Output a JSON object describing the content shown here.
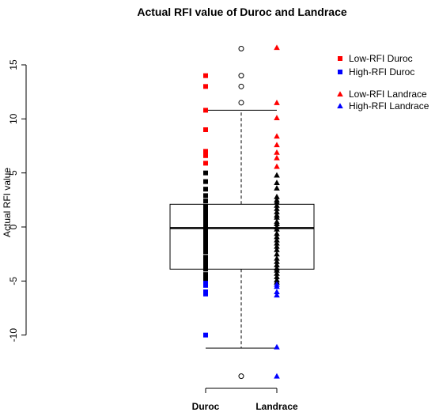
{
  "chart_data": {
    "type": "box",
    "title": "Actual RFI value of Duroc and Landrace",
    "ylabel": "Actual RFI value",
    "xlabel": "",
    "ylim": [
      -14.5,
      17.5
    ],
    "yticks": [
      -10,
      -5,
      0,
      5,
      10,
      15
    ],
    "categories": [
      "Duroc",
      "Landrace"
    ],
    "grid": false,
    "legend_position": "top-right",
    "box": {
      "q1": -3.9,
      "median": -0.1,
      "q3": 2.1,
      "whisker_low": -11.2,
      "whisker_high": 10.8,
      "outliers": [
        16.5,
        14.0,
        13.0,
        11.5,
        -13.8
      ]
    },
    "series": [
      {
        "name": "Low-RFI Duroc",
        "category": "Duroc",
        "marker": "square",
        "color": "#ff0000",
        "values": [
          14.0,
          13.0,
          10.8,
          9.0,
          7.0,
          6.8,
          6.6,
          5.9
        ]
      },
      {
        "name": "High-RFI Duroc",
        "category": "Duroc",
        "marker": "square",
        "color": "#0000ff",
        "values": [
          -5.2,
          -5.4,
          -6.0,
          -6.2,
          -10.0
        ]
      },
      {
        "name": "Low-RFI Landrace",
        "category": "Landrace",
        "marker": "triangle",
        "color": "#ff0000",
        "values": [
          16.6,
          11.5,
          10.1,
          8.4,
          7.6,
          6.9,
          6.4,
          5.6
        ]
      },
      {
        "name": "High-RFI Landrace",
        "category": "Landrace",
        "marker": "triangle",
        "color": "#0000ff",
        "values": [
          -5.3,
          -5.5,
          -6.0,
          -6.3,
          -11.1,
          -13.8
        ]
      }
    ],
    "unlabeled_points": {
      "color": "#000000",
      "Duroc": [
        5.0,
        4.2,
        3.5,
        2.9,
        2.4,
        1.9,
        1.5,
        1.2,
        0.9,
        0.6,
        0.2,
        -0.1,
        -0.5,
        -0.9,
        -1.2,
        -1.6,
        -2.0,
        -2.3,
        -2.8,
        -3.2,
        -3.5,
        -3.9,
        -4.4,
        -4.8
      ],
      "Landrace": [
        4.8,
        4.1,
        3.6,
        2.8,
        2.5,
        2.3,
        2.0,
        1.7,
        1.4,
        1.1,
        0.9,
        0.5,
        0.3,
        0.0,
        -0.2,
        -0.6,
        -0.9,
        -1.2,
        -1.5,
        -1.8,
        -2.1,
        -2.5,
        -2.9,
        -3.2,
        -3.5,
        -3.8,
        -4.0,
        -4.3,
        -4.6,
        -4.9,
        -5.1
      ]
    }
  }
}
